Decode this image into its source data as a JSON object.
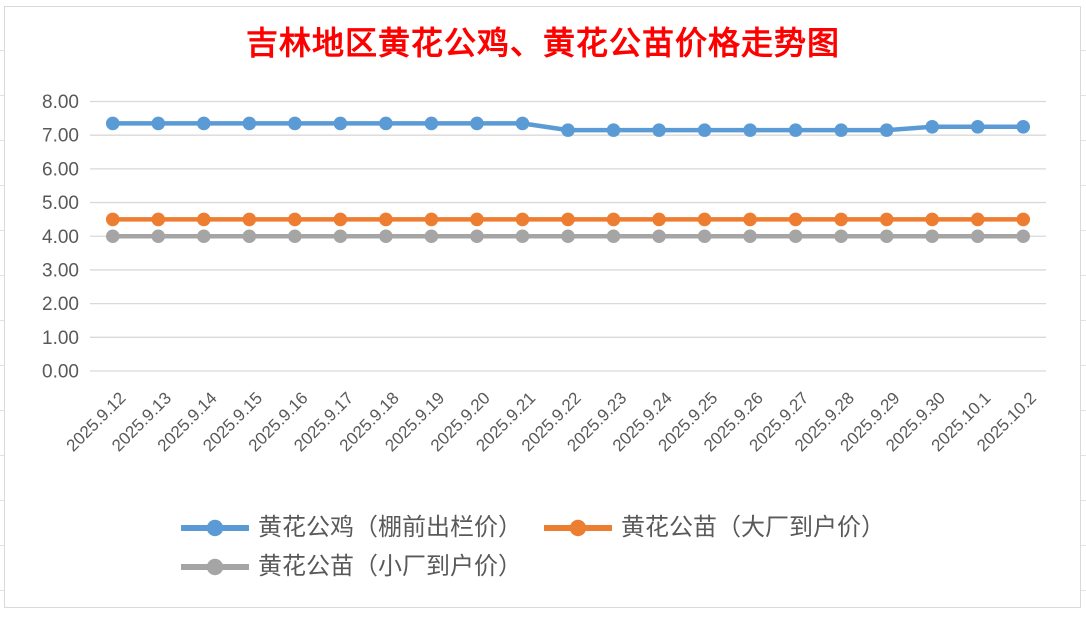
{
  "chart_data": {
    "type": "line",
    "title": "吉林地区黄花公鸡、黄花公苗价格走势图",
    "title_color": "#ff0000",
    "categories": [
      "2025.9.12",
      "2025.9.13",
      "2025.9.14",
      "2025.9.15",
      "2025.9.16",
      "2025.9.17",
      "2025.9.18",
      "2025.9.19",
      "2025.9.20",
      "2025.9.21",
      "2025.9.22",
      "2025.9.23",
      "2025.9.24",
      "2025.9.25",
      "2025.9.26",
      "2025.9.27",
      "2025.9.28",
      "2025.9.29",
      "2025.9.30",
      "2025.10.1",
      "2025.10.2"
    ],
    "series": [
      {
        "name": "黄花公鸡（棚前出栏价）",
        "color": "#5b9bd5",
        "values": [
          7.35,
          7.35,
          7.35,
          7.35,
          7.35,
          7.35,
          7.35,
          7.35,
          7.35,
          7.35,
          7.15,
          7.15,
          7.15,
          7.15,
          7.15,
          7.15,
          7.15,
          7.15,
          7.25,
          7.25,
          7.25
        ]
      },
      {
        "name": "黄花公苗（大厂到户价）",
        "color": "#ed7d31",
        "values": [
          4.5,
          4.5,
          4.5,
          4.5,
          4.5,
          4.5,
          4.5,
          4.5,
          4.5,
          4.5,
          4.5,
          4.5,
          4.5,
          4.5,
          4.5,
          4.5,
          4.5,
          4.5,
          4.5,
          4.5,
          4.5
        ]
      },
      {
        "name": "黄花公苗（小厂到户价）",
        "color": "#a5a5a5",
        "values": [
          4.0,
          4.0,
          4.0,
          4.0,
          4.0,
          4.0,
          4.0,
          4.0,
          4.0,
          4.0,
          4.0,
          4.0,
          4.0,
          4.0,
          4.0,
          4.0,
          4.0,
          4.0,
          4.0,
          4.0,
          4.0
        ]
      }
    ],
    "ylim": [
      0,
      8
    ],
    "ytick_step": 1,
    "ytick_labels": [
      "0.00",
      "1.00",
      "2.00",
      "3.00",
      "4.00",
      "5.00",
      "6.00",
      "7.00",
      "8.00"
    ],
    "x_label_rotation": -45,
    "grid": "horizontal",
    "legend_position": "bottom",
    "colors": {
      "gridline": "#d9d9d9",
      "axis_text": "#595959",
      "legend_text": "#595959",
      "chart_border": "#d9d9d9",
      "background": "#ffffff"
    }
  }
}
